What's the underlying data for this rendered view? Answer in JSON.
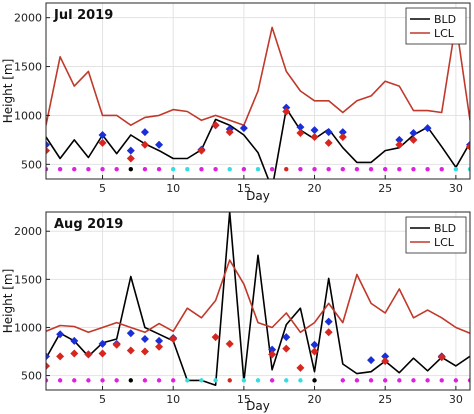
{
  "chart_data": [
    {
      "type": "line",
      "title": "Jul 2019",
      "xlabel": "Day",
      "ylabel": "Height [m]",
      "xlim": [
        1,
        31
      ],
      "ylim": [
        350,
        2150
      ],
      "xticks": [
        5,
        10,
        15,
        20,
        25,
        30
      ],
      "yticks": [
        500,
        1000,
        1500,
        2000
      ],
      "grid": true,
      "legend_position": "top-right",
      "series": [
        {
          "name": "BLD",
          "type": "line",
          "color": "#000000",
          "x": [
            1,
            2,
            3,
            4,
            5,
            6,
            7,
            8,
            9,
            10,
            11,
            12,
            13,
            14,
            15,
            16,
            17,
            18,
            19,
            20,
            21,
            22,
            23,
            24,
            25,
            26,
            27,
            28,
            29,
            30,
            31
          ],
          "y": [
            780,
            560,
            750,
            570,
            800,
            610,
            800,
            710,
            640,
            560,
            560,
            650,
            960,
            900,
            800,
            620,
            250,
            1070,
            850,
            760,
            860,
            670,
            520,
            520,
            640,
            670,
            800,
            880,
            680,
            470,
            720
          ]
        },
        {
          "name": "LCL",
          "type": "line",
          "color": "#c0392b",
          "x": [
            1,
            2,
            3,
            4,
            5,
            6,
            7,
            8,
            9,
            10,
            11,
            12,
            13,
            14,
            15,
            16,
            17,
            18,
            19,
            20,
            21,
            22,
            23,
            24,
            25,
            26,
            27,
            28,
            29,
            30,
            31
          ],
          "y": [
            900,
            1600,
            1300,
            1450,
            1000,
            1000,
            900,
            980,
            1000,
            1060,
            1040,
            950,
            1000,
            950,
            900,
            1250,
            1900,
            1450,
            1250,
            1150,
            1150,
            1030,
            1150,
            1200,
            1350,
            1300,
            1050,
            1050,
            1030,
            1950,
            950
          ]
        },
        {
          "name": "",
          "type": "scatter",
          "marker": "diamond",
          "color": "#1a2fd6",
          "x": [
            1,
            5,
            7,
            8,
            9,
            12,
            13,
            14,
            15,
            18,
            19,
            20,
            21,
            22,
            26,
            27,
            28,
            31
          ],
          "y": [
            700,
            800,
            640,
            830,
            700,
            650,
            900,
            860,
            870,
            1080,
            880,
            850,
            830,
            830,
            750,
            820,
            870,
            700
          ]
        },
        {
          "name": "",
          "type": "scatter",
          "marker": "diamond",
          "color": "#d7261e",
          "x": [
            1,
            5,
            7,
            8,
            12,
            13,
            14,
            18,
            19,
            20,
            21,
            22,
            26,
            27,
            31
          ],
          "y": [
            640,
            720,
            560,
            700,
            640,
            900,
            830,
            1040,
            820,
            780,
            720,
            780,
            700,
            750,
            680
          ]
        },
        {
          "name": "",
          "type": "scatter",
          "marker": "dot",
          "color": "#e020e0",
          "x": [
            1,
            2,
            3,
            4,
            5,
            6,
            8,
            9,
            12,
            13,
            15,
            17,
            19,
            20,
            21,
            22,
            23,
            24,
            25,
            26,
            27,
            28,
            29
          ],
          "y": [
            450,
            450,
            450,
            450,
            450,
            450,
            450,
            450,
            450,
            450,
            450,
            450,
            450,
            450,
            450,
            450,
            450,
            450,
            450,
            450,
            450,
            450,
            450
          ]
        },
        {
          "name": "",
          "type": "scatter",
          "marker": "dot",
          "color": "#33dde0",
          "x": [
            10,
            11,
            14,
            16,
            30,
            31
          ],
          "y": [
            450,
            450,
            450,
            450,
            450,
            450
          ]
        },
        {
          "name": "",
          "type": "scatter",
          "marker": "dot",
          "color": "#d7261e",
          "x": [
            18
          ],
          "y": [
            450
          ]
        },
        {
          "name": "",
          "type": "scatter",
          "marker": "dot",
          "color": "#000000",
          "x": [
            7
          ],
          "y": [
            450
          ]
        }
      ]
    },
    {
      "type": "line",
      "title": "Aug 2019",
      "xlabel": "Day",
      "ylabel": "Height [m]",
      "xlim": [
        1,
        31
      ],
      "ylim": [
        350,
        2200
      ],
      "xticks": [
        5,
        10,
        15,
        20,
        25,
        30
      ],
      "yticks": [
        500,
        1000,
        1500,
        2000
      ],
      "grid": true,
      "legend_position": "top-right",
      "series": [
        {
          "name": "BLD",
          "type": "line",
          "color": "#000000",
          "x": [
            1,
            2,
            3,
            4,
            5,
            6,
            7,
            8,
            9,
            10,
            11,
            12,
            13,
            14,
            15,
            16,
            17,
            18,
            19,
            20,
            21,
            22,
            23,
            24,
            25,
            26,
            27,
            28,
            29,
            30,
            31
          ],
          "y": [
            680,
            940,
            860,
            700,
            840,
            880,
            1530,
            1000,
            930,
            860,
            450,
            450,
            400,
            2200,
            440,
            1750,
            560,
            1030,
            1200,
            540,
            1510,
            620,
            520,
            540,
            650,
            530,
            680,
            550,
            690,
            600,
            700
          ]
        },
        {
          "name": "LCL",
          "type": "line",
          "color": "#c0392b",
          "x": [
            1,
            2,
            3,
            4,
            5,
            6,
            7,
            8,
            9,
            10,
            11,
            12,
            13,
            14,
            15,
            16,
            17,
            18,
            19,
            20,
            21,
            22,
            23,
            24,
            25,
            26,
            27,
            28,
            29,
            30,
            31
          ],
          "y": [
            960,
            1020,
            1010,
            950,
            1000,
            1050,
            1000,
            950,
            1040,
            960,
            1200,
            1100,
            1280,
            1700,
            1450,
            1050,
            1000,
            1150,
            950,
            1050,
            1250,
            1050,
            1550,
            1250,
            1150,
            1400,
            1100,
            1180,
            1100,
            1000,
            940
          ]
        },
        {
          "name": "",
          "type": "scatter",
          "marker": "diamond",
          "color": "#1a2fd6",
          "x": [
            1,
            2,
            3,
            4,
            5,
            6,
            7,
            8,
            9,
            10,
            17,
            18,
            20,
            21,
            24,
            25,
            29
          ],
          "y": [
            700,
            930,
            860,
            720,
            830,
            830,
            940,
            880,
            860,
            890,
            770,
            900,
            820,
            1060,
            660,
            700,
            700
          ]
        },
        {
          "name": "",
          "type": "scatter",
          "marker": "diamond",
          "color": "#d7261e",
          "x": [
            1,
            2,
            3,
            4,
            5,
            6,
            7,
            8,
            9,
            10,
            13,
            14,
            17,
            18,
            19,
            20,
            21,
            25,
            29
          ],
          "y": [
            600,
            700,
            730,
            720,
            730,
            820,
            760,
            750,
            800,
            880,
            900,
            830,
            720,
            780,
            580,
            750,
            950,
            650,
            690
          ]
        },
        {
          "name": "",
          "type": "scatter",
          "marker": "dot",
          "color": "#e020e0",
          "x": [
            1,
            2,
            3,
            4,
            5,
            6,
            8,
            9,
            10,
            17,
            22,
            23,
            24,
            25,
            26,
            27,
            28,
            29,
            30,
            31
          ],
          "y": [
            450,
            450,
            450,
            450,
            450,
            450,
            450,
            450,
            450,
            450,
            450,
            450,
            450,
            450,
            450,
            450,
            450,
            450,
            450,
            450
          ]
        },
        {
          "name": "",
          "type": "scatter",
          "marker": "dot",
          "color": "#33dde0",
          "x": [
            11,
            12,
            13,
            15,
            16,
            18,
            19
          ],
          "y": [
            450,
            450,
            450,
            450,
            450,
            450,
            450
          ]
        },
        {
          "name": "",
          "type": "scatter",
          "marker": "dot",
          "color": "#d7261e",
          "x": [
            14
          ],
          "y": [
            450
          ]
        },
        {
          "name": "",
          "type": "scatter",
          "marker": "dot",
          "color": "#000000",
          "x": [
            7,
            20
          ],
          "y": [
            450,
            450
          ]
        }
      ]
    }
  ]
}
